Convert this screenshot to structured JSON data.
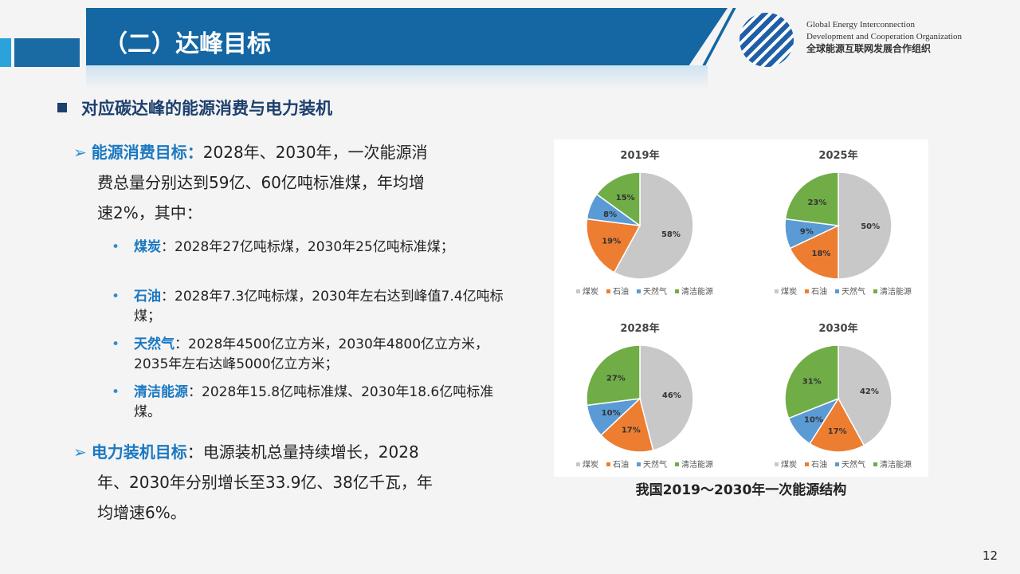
{
  "header": {
    "title": "（二）达峰目标",
    "org_en_1": "Global Energy Interconnection",
    "org_en_2": "Development and Cooperation Organization",
    "org_cn": "全球能源互联网发展合作组织"
  },
  "section_title": "对应碳达峰的能源消费与电力装机",
  "energy": {
    "label": "能源消费目标：",
    "text1": "2028年、2030年，一次能源消",
    "text2": "费总量分别达到59亿、60亿吨标准煤，年均增",
    "text3": "速2%，其中："
  },
  "items": [
    {
      "label": "煤炭",
      "text": "：2028年27亿吨标煤，2030年25亿吨标准煤；"
    },
    {
      "label": "石油",
      "text": "：2028年7.3亿吨标煤，2030年左右达到峰值7.4亿吨标煤；"
    },
    {
      "label": "天然气",
      "text": "：2028年4500亿立方米，2030年4800亿立方米，2035年左右达峰5000亿立方米；"
    },
    {
      "label": "清洁能源",
      "text": "：2028年15.8亿吨标准煤、2030年18.6亿吨标准煤。"
    }
  ],
  "power": {
    "label": "电力装机目标",
    "text1": "：电源装机总量持续增长，2028",
    "text2": "年、2030年分别增长至33.9亿、38亿千瓦，年",
    "text3": "均增速6%。"
  },
  "caption": "我国2019～2030年一次能源结构",
  "page_number": "12",
  "chart_data": [
    {
      "type": "pie",
      "title": "2019年",
      "categories": [
        "煤炭",
        "石油",
        "天然气",
        "清洁能源"
      ],
      "values": [
        58,
        19,
        8,
        15
      ],
      "labels": [
        "58%",
        "19%",
        "8%",
        "15%"
      ],
      "colors": [
        "#c8c8c8",
        "#ed7d31",
        "#5b9bd5",
        "#70ad47"
      ],
      "legend": "bottom"
    },
    {
      "type": "pie",
      "title": "2025年",
      "categories": [
        "煤炭",
        "石油",
        "天然气",
        "清洁能源"
      ],
      "values": [
        50,
        18,
        9,
        23
      ],
      "labels": [
        "50%",
        "18%",
        "9%",
        "23%"
      ],
      "colors": [
        "#c8c8c8",
        "#ed7d31",
        "#5b9bd5",
        "#70ad47"
      ],
      "legend": "bottom"
    },
    {
      "type": "pie",
      "title": "2028年",
      "categories": [
        "煤炭",
        "石油",
        "天然气",
        "清洁能源"
      ],
      "values": [
        46,
        17,
        10,
        27
      ],
      "labels": [
        "46%",
        "17%",
        "10%",
        "27%"
      ],
      "colors": [
        "#c8c8c8",
        "#ed7d31",
        "#5b9bd5",
        "#70ad47"
      ],
      "legend": "bottom"
    },
    {
      "type": "pie",
      "title": "2030年",
      "categories": [
        "煤炭",
        "石油",
        "天然气",
        "清洁能源"
      ],
      "values": [
        42,
        17,
        10,
        31
      ],
      "labels": [
        "42%",
        "17%",
        "10%",
        "31%"
      ],
      "colors": [
        "#c8c8c8",
        "#ed7d31",
        "#5b9bd5",
        "#70ad47"
      ],
      "legend": "bottom"
    }
  ]
}
